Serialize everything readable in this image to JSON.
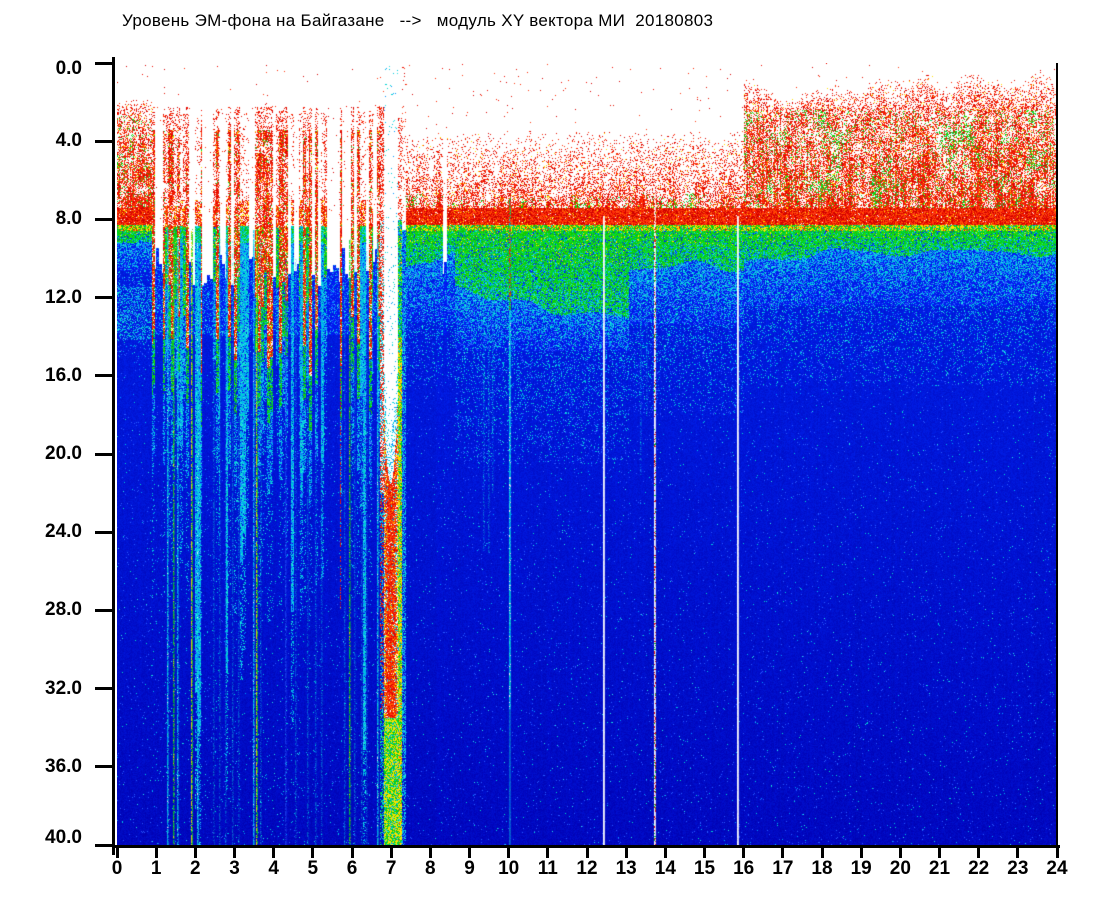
{
  "title": "Уровень ЭМ-фона на Байгазане   -->   модуль XY вектора МИ  20180803",
  "chart_data": {
    "type": "heatmap",
    "subtype": "spectrogram",
    "title": "Уровень ЭМ-фона на Байгазане --> модуль XY вектора МИ 20180803",
    "station": "Байгазан",
    "date": "20180803",
    "x_range": [
      0,
      24
    ],
    "y_range": [
      0,
      40
    ],
    "y_inverted": true,
    "x_tick_values": [
      0,
      1,
      2,
      3,
      4,
      5,
      6,
      7,
      8,
      9,
      10,
      11,
      12,
      13,
      14,
      15,
      16,
      17,
      18,
      19,
      20,
      21,
      22,
      23,
      24
    ],
    "x_tick_labels": [
      "0",
      "1",
      "2",
      "3",
      "4",
      "5",
      "6",
      "7",
      "8",
      "9",
      "10",
      "11",
      "12",
      "13",
      "14",
      "15",
      "16",
      "17",
      "18",
      "19",
      "20",
      "21",
      "22",
      "23",
      "24"
    ],
    "y_tick_values": [
      0,
      4,
      8,
      12,
      16,
      20,
      24,
      28,
      32,
      36,
      40
    ],
    "y_tick_labels": [
      "0.0",
      "4.0",
      "8.0",
      "12.0",
      "16.0",
      "20.0",
      "24.0",
      "28.0",
      "32.0",
      "36.0",
      "40.0"
    ],
    "colormap": "jet-on-white",
    "legend": "none",
    "bands": [
      {
        "value_range": [
          0,
          2.3
        ],
        "level": "no signal",
        "color": "white"
      },
      {
        "value_range": [
          2.3,
          8.3
        ],
        "level": "high",
        "color": "red speckle"
      },
      {
        "value_range": [
          8.3,
          12.5
        ],
        "level": "medium",
        "color": "green-yellow"
      },
      {
        "value_range": [
          12.5,
          14.5
        ],
        "level": "low-medium",
        "color": "cyan"
      },
      {
        "value_range": [
          14.5,
          40
        ],
        "level": "background",
        "color": "blue"
      }
    ],
    "events": [
      {
        "hours": [
          0.9,
          7.3
        ],
        "desc": "strong vertical disturbance streaks, many reach bottom of scale"
      },
      {
        "hours": [
          6.8,
          7.2
        ],
        "desc": "major event: white/red column penetrating to 40"
      },
      {
        "hour": 10.0,
        "desc": "thin cyan/red vertical line over full depth"
      },
      {
        "hour": 12.4,
        "desc": "white data-gap line over full depth"
      },
      {
        "hour": 13.7,
        "desc": "white data-gap line with red dashes"
      },
      {
        "hour": 15.8,
        "desc": "white data-gap line over full depth"
      },
      {
        "hours": [
          16,
          24
        ],
        "desc": "elevated dense red activity at top of band"
      }
    ],
    "render": {
      "seed": 7,
      "palette": {
        "red": [
          "#f00a00",
          "#e61400",
          "#ff2800",
          "#d80000",
          "#ff3c14"
        ],
        "darkRed": "#c80000",
        "orange": "#ff6400",
        "yellow": "#ffe000",
        "green": [
          "#00dc28",
          "#14c800",
          "#00d24a",
          "#32dc00",
          "#00c814"
        ],
        "cyan": [
          "#00c8dc",
          "#00b4f0",
          "#28e1e6",
          "#0096ff",
          "#00dcc8"
        ],
        "lightBlue": "#2858ff",
        "paleBlue": "#dcdcff",
        "white": "#ffffff",
        "bgTop": [
          0,
          30,
          228
        ],
        "bgBottom": [
          0,
          8,
          192
        ],
        "bgVTop": 9,
        "bgVBottom": 40
      },
      "profiles": [
        {
          "hMax": 0.88,
          "s": 1.9,
          "sw": 0.2,
          "d": 2.7,
          "g": 9.35,
          "gw": 0.3,
          "c": 10.6,
          "t": 15.0,
          "rd": 0.8,
          "gs": 0.1,
          "cyan2": [
            11.45,
            14.15,
            0.3
          ]
        },
        {
          "hMax": 6.7,
          "disturbed": true
        },
        {
          "hMax": 7.36,
          "feature": true
        },
        {
          "hMax": 8.62,
          "s": 3.6,
          "sw": 0.3,
          "d": 6.6,
          "g": 10.4,
          "gw": 0.8,
          "c": 13.2,
          "t": 16.5,
          "rd": 0.66,
          "gs": 0.04
        },
        {
          "hMax": 13.05,
          "s": 3.7,
          "sw": 0.3,
          "d": 6.8,
          "g": 12.3,
          "gw": 0.9,
          "c": 14.7,
          "t": 20.5,
          "rd": 0.68,
          "gs": 0.05
        },
        {
          "hMax": 16.0,
          "s": 3.6,
          "sw": 0.3,
          "d": 6.6,
          "g": 10.1,
          "gw": 0.6,
          "c": 13.4,
          "t": 18.0,
          "rd": 0.7,
          "gs": 0.05
        },
        {
          "hMax": 24.01,
          "s": 1.15,
          "sw": 0.9,
          "d": 2.4,
          "g": 9.7,
          "gw": 0.5,
          "c": 12.4,
          "t": 16.5,
          "rd": 0.76,
          "gs": 0.1
        }
      ],
      "disturbed": {
        "h0": 0.88,
        "h1": 6.7,
        "clusterPx": 3,
        "weights": [
          [
            "white",
            0.27
          ],
          [
            "red",
            0.33
          ],
          [
            "green",
            0.18
          ],
          [
            "cyan",
            0.22
          ]
        ]
      },
      "gaps": [
        [
          0.95,
          1.15
        ],
        [
          2.15,
          2.35
        ],
        [
          2.62,
          2.78
        ],
        [
          3.35,
          3.47
        ],
        [
          4.5,
          4.63
        ],
        [
          5.38,
          5.68
        ],
        [
          5.74,
          5.95
        ],
        [
          6.52,
          6.62
        ],
        [
          8.3,
          8.42
        ]
      ],
      "deep_stripes": [
        {
          "h": 1.28,
          "kind": "cyan",
          "v0": 8.5,
          "v1": 40
        },
        {
          "h": 1.42,
          "kind": "green",
          "v0": 8.5,
          "v1": 40
        },
        {
          "h": 1.53,
          "kind": "cyan",
          "v0": 9,
          "v1": 40
        },
        {
          "h": 1.9,
          "kind": "yellowGreen",
          "v0": 8.5,
          "v1": 40
        },
        {
          "h": 2.04,
          "kind": "cyan",
          "v0": 9,
          "v1": 40
        },
        {
          "h": 2.46,
          "kind": "cyanFaint",
          "v0": 9,
          "v1": 40
        },
        {
          "h": 2.6,
          "kind": "cyanFaint",
          "v0": 9,
          "v1": 40
        },
        {
          "h": 2.76,
          "kind": "cyanFaint",
          "v0": 9,
          "v1": 40
        },
        {
          "h": 2.93,
          "kind": "cyanFaint",
          "v0": 9,
          "v1": 40
        },
        {
          "h": 3.1,
          "kind": "cyanFaint",
          "v0": 10,
          "v1": 40
        },
        {
          "h": 3.46,
          "kind": "cyan",
          "v0": 8.5,
          "v1": 40
        },
        {
          "h": 3.56,
          "kind": "yellowGreen",
          "v0": 8.5,
          "v1": 40
        },
        {
          "h": 3.66,
          "kind": "cyanFaint",
          "v0": 9,
          "v1": 40
        },
        {
          "h": 4.28,
          "kind": "blueLight",
          "v0": 10,
          "v1": 40
        },
        {
          "h": 4.55,
          "kind": "cyanFaint",
          "v0": 10,
          "v1": 40
        },
        {
          "h": 4.86,
          "kind": "cyanFaint",
          "v0": 10,
          "v1": 40
        },
        {
          "h": 5.06,
          "kind": "cyanFaint",
          "v0": 10,
          "v1": 40
        },
        {
          "h": 5.22,
          "kind": "cyanFaint",
          "v0": 12,
          "v1": 40
        },
        {
          "h": 5.7,
          "kind": "redSpeckle",
          "v0": 8.5,
          "v1": 28
        },
        {
          "h": 5.8,
          "kind": "cyanFaint",
          "v0": 10,
          "v1": 40
        },
        {
          "h": 5.92,
          "kind": "green",
          "v0": 9,
          "v1": 40
        },
        {
          "h": 6.06,
          "kind": "cyanFaint",
          "v0": 9,
          "v1": 40
        },
        {
          "h": 6.22,
          "kind": "cyanFaint",
          "v0": 9,
          "v1": 40
        },
        {
          "h": 6.36,
          "kind": "cyanFaint",
          "v0": 9,
          "v1": 40
        },
        {
          "h": 6.64,
          "kind": "cyan",
          "v0": 9,
          "v1": 40
        },
        {
          "h": 9.35,
          "kind": "cyanFaint",
          "v0": 9,
          "v1": 25
        },
        {
          "h": 9.47,
          "kind": "cyanFaint",
          "v0": 9,
          "v1": 25
        },
        {
          "h": 9.58,
          "kind": "cyanFaint",
          "v0": 9,
          "v1": 22
        },
        {
          "h": 13.35,
          "kind": "cyanFaint",
          "v0": 9,
          "v1": 21
        },
        {
          "h": 13.5,
          "kind": "cyanFaint",
          "v0": 9,
          "v1": 18
        }
      ],
      "white_lines": [
        {
          "h": 10.02,
          "kind": "cyanLine",
          "v0": 6.9,
          "v1": 40
        },
        {
          "h": 12.42,
          "kind": "white",
          "v0": 7.85,
          "v1": 40
        },
        {
          "h": 13.72,
          "kind": "whiteDash",
          "v0": 6.6,
          "v1": 40
        },
        {
          "h": 15.82,
          "kind": "white",
          "v0": 7.85,
          "v1": 40
        }
      ],
      "feature": {
        "h0": 6.7,
        "leftRedEnd": 6.8,
        "center": 6.975,
        "coreHalf": 0.175,
        "rimEnd": 7.27,
        "h1": 7.36,
        "whiteDepthCenter": 21.5,
        "whiteDepthEdge": 17.5,
        "redEnd": 33.5
      }
    }
  }
}
